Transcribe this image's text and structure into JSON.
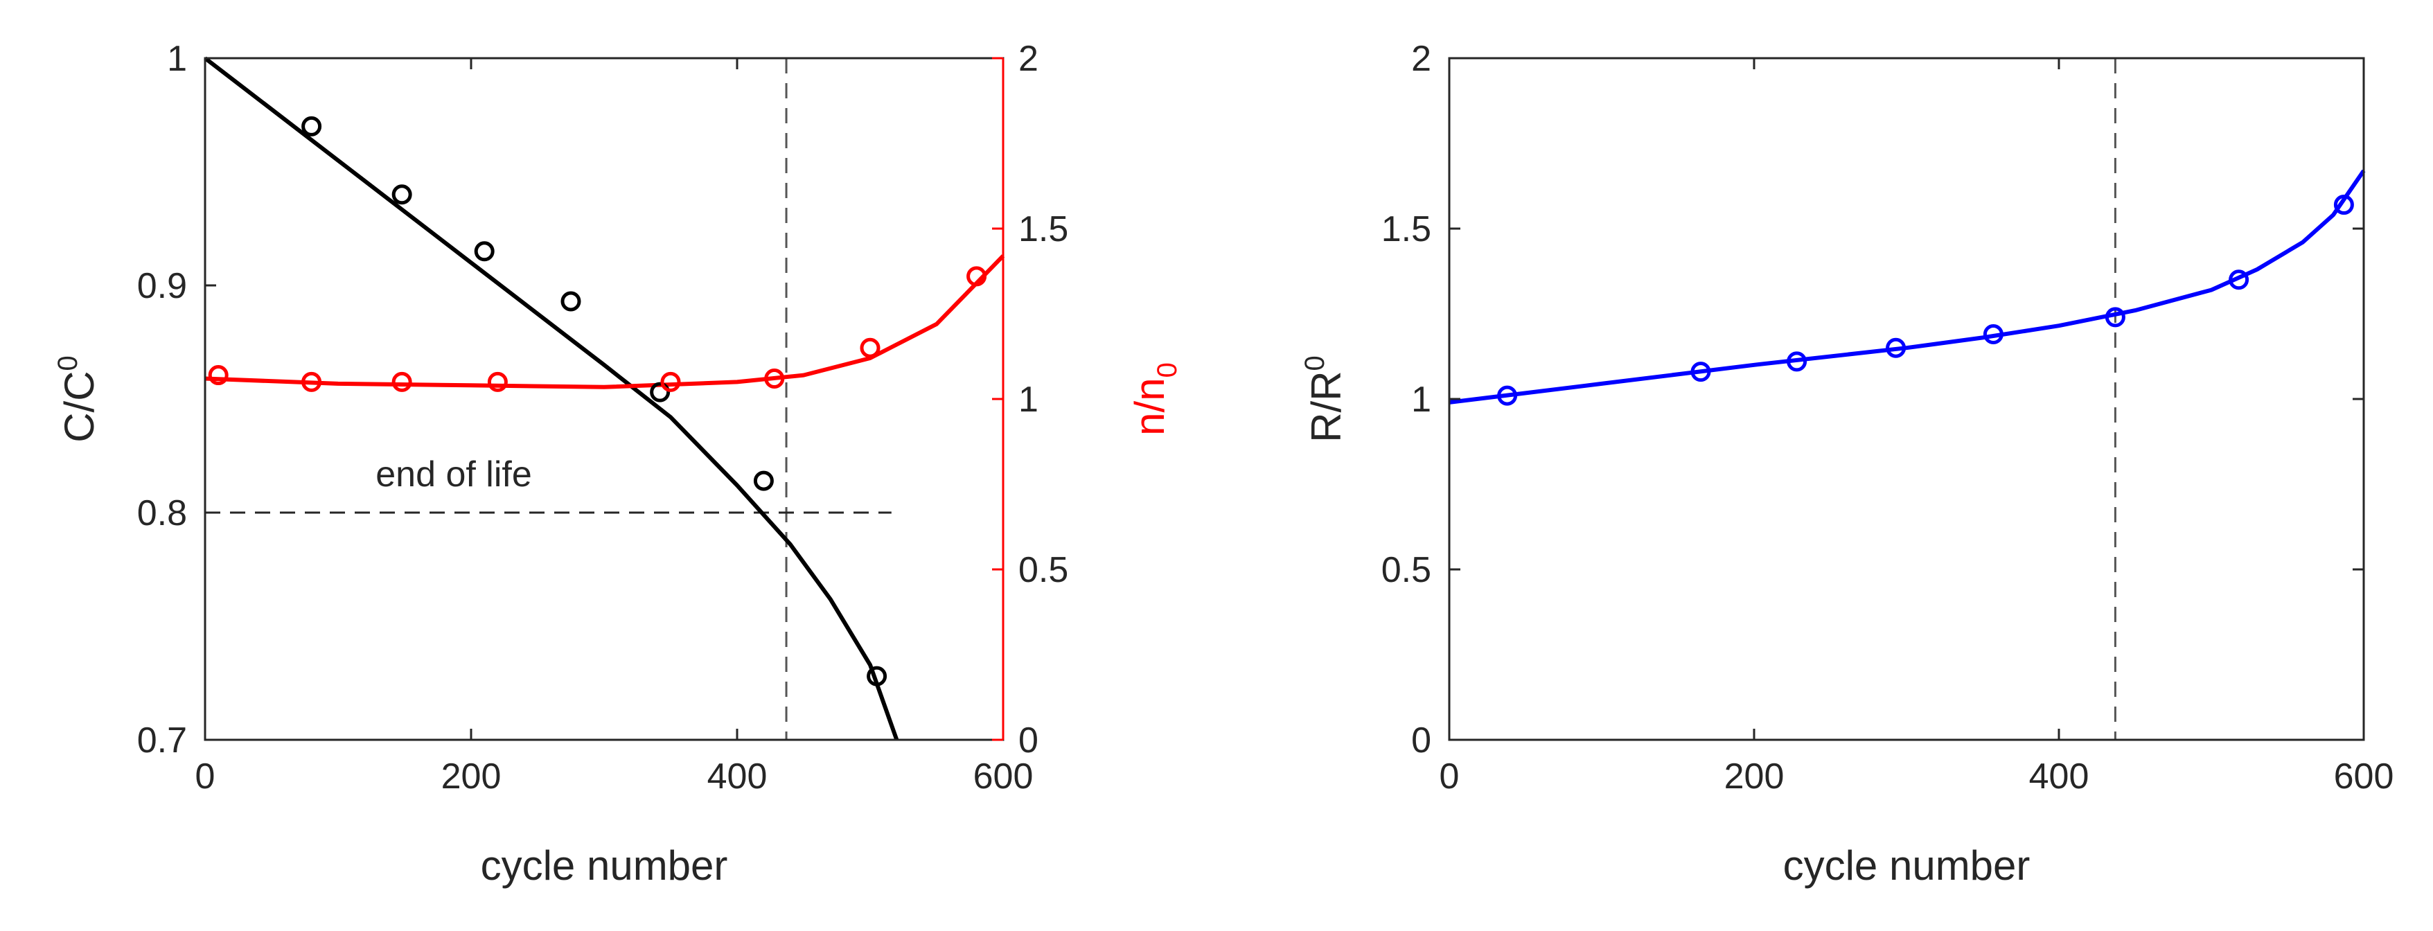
{
  "chart_data": [
    {
      "type": "line",
      "panel": "left",
      "xlabel": "cycle number",
      "xlim": [
        0,
        600
      ],
      "x_ticks": [
        "0",
        "200",
        "400",
        "600"
      ],
      "ylabel_left": {
        "base": "C/C",
        "sup": "0"
      },
      "ylim_left": [
        0.7,
        1.0
      ],
      "y_ticks_left": [
        "0.7",
        "0.8",
        "0.9",
        "1"
      ],
      "ylabel_right": {
        "base": "n/n",
        "sub": "0"
      },
      "ylim_right": [
        0,
        2
      ],
      "y_ticks_right": [
        "0",
        "0.5",
        "1",
        "1.5",
        "2"
      ],
      "colors": {
        "capacity": "#000000",
        "n": "#ff0000"
      },
      "series": [
        {
          "axis": "left",
          "color": "#000000",
          "points": [
            [
              80,
              0.97
            ],
            [
              148,
              0.94
            ],
            [
              210,
              0.915
            ],
            [
              275,
              0.893
            ],
            [
              342,
              0.853
            ],
            [
              420,
              0.814
            ],
            [
              505,
              0.728
            ]
          ],
          "fit": [
            [
              0,
              1.0
            ],
            [
              100,
              0.955
            ],
            [
              200,
              0.91
            ],
            [
              300,
              0.865
            ],
            [
              350,
              0.842
            ],
            [
              400,
              0.812
            ],
            [
              440,
              0.786
            ],
            [
              470,
              0.762
            ],
            [
              500,
              0.733
            ],
            [
              520,
              0.7
            ]
          ]
        },
        {
          "axis": "right",
          "color": "#ff0000",
          "points": [
            [
              10,
              1.07
            ],
            [
              80,
              1.05
            ],
            [
              148,
              1.05
            ],
            [
              220,
              1.05
            ],
            [
              350,
              1.05
            ],
            [
              428,
              1.06
            ],
            [
              500,
              1.15
            ],
            [
              580,
              1.36
            ]
          ],
          "fit": [
            [
              0,
              1.06
            ],
            [
              100,
              1.045
            ],
            [
              200,
              1.04
            ],
            [
              300,
              1.035
            ],
            [
              400,
              1.05
            ],
            [
              450,
              1.07
            ],
            [
              500,
              1.12
            ],
            [
              550,
              1.22
            ],
            [
              600,
              1.42
            ]
          ]
        }
      ],
      "hline": {
        "y": 0.8,
        "x_range": [
          0,
          490
        ],
        "label": "end of life"
      },
      "vline": {
        "x": 437
      }
    },
    {
      "type": "line",
      "panel": "right",
      "xlabel": "cycle number",
      "xlim": [
        0,
        600
      ],
      "x_ticks": [
        "0",
        "200",
        "400",
        "600"
      ],
      "ylabel": {
        "base": "R/R",
        "sup": "0"
      },
      "ylim": [
        0,
        2
      ],
      "y_ticks": [
        "0",
        "0.5",
        "1",
        "1.5",
        "2"
      ],
      "series": [
        {
          "color": "#0000ff",
          "points": [
            [
              38,
              1.01
            ],
            [
              165,
              1.08
            ],
            [
              228,
              1.11
            ],
            [
              293,
              1.15
            ],
            [
              357,
              1.19
            ],
            [
              437,
              1.24
            ],
            [
              518,
              1.35
            ],
            [
              587,
              1.57
            ]
          ],
          "fit": [
            [
              0,
              0.99
            ],
            [
              100,
              1.045
            ],
            [
              200,
              1.1
            ],
            [
              300,
              1.15
            ],
            [
              350,
              1.18
            ],
            [
              400,
              1.215
            ],
            [
              450,
              1.26
            ],
            [
              500,
              1.32
            ],
            [
              530,
              1.38
            ],
            [
              560,
              1.46
            ],
            [
              580,
              1.54
            ],
            [
              600,
              1.67
            ]
          ]
        }
      ],
      "vline": {
        "x": 437
      }
    }
  ]
}
